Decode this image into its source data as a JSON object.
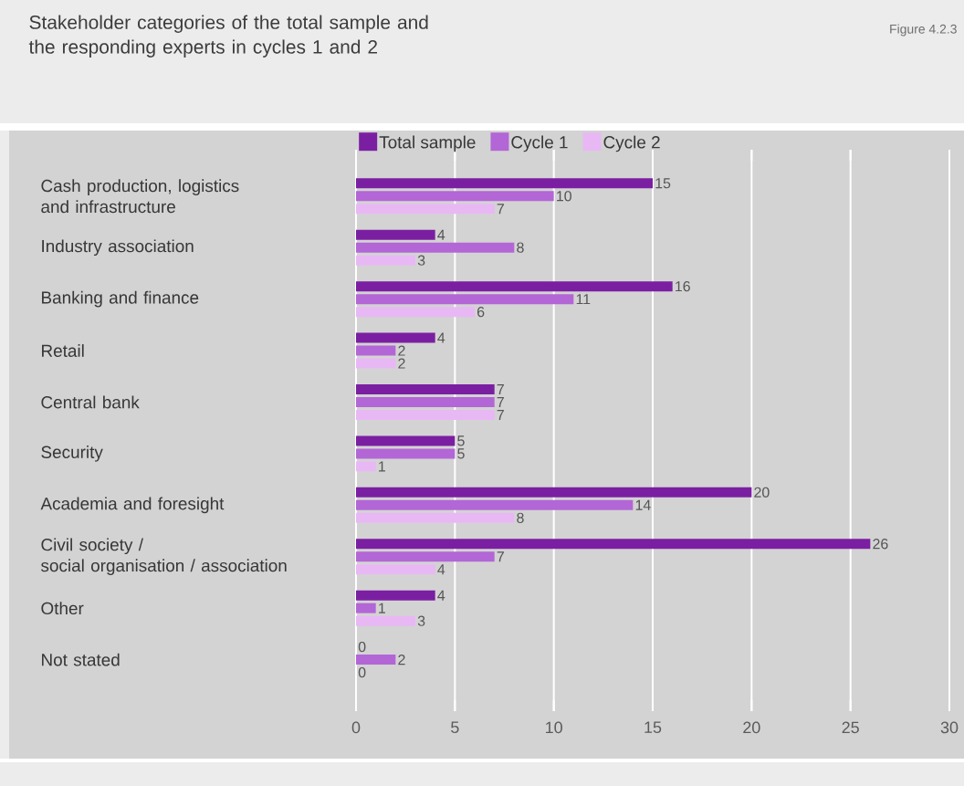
{
  "chart_data": {
    "type": "bar",
    "orientation": "horizontal",
    "title": "Stakeholder categories of the total sample and\nthe responding experts in cycles 1 and 2",
    "annotations": [
      "Figure 4.2.3"
    ],
    "categories": [
      "Cash production, logistics\nand infrastructure",
      "Industry association",
      "Banking and finance",
      "Retail",
      "Central bank",
      "Security",
      "Academia and foresight",
      "Civil society /\nsocial organisation / association",
      "Other",
      "Not stated"
    ],
    "series": [
      {
        "name": "Total sample",
        "color": "#7b1fa2",
        "values": [
          15,
          4,
          16,
          4,
          7,
          5,
          20,
          26,
          4,
          0
        ]
      },
      {
        "name": "Cycle 1",
        "color": "#b366d6",
        "values": [
          10,
          8,
          11,
          2,
          7,
          5,
          14,
          7,
          1,
          2
        ]
      },
      {
        "name": "Cycle 2",
        "color": "#e8b8f5",
        "values": [
          7,
          3,
          6,
          2,
          7,
          1,
          8,
          4,
          3,
          0
        ]
      }
    ],
    "xlim": [
      0,
      30
    ],
    "xticks": [
      0,
      5,
      10,
      15,
      20,
      25,
      30
    ],
    "grid": "x",
    "legend": "top",
    "data_labels": true
  }
}
